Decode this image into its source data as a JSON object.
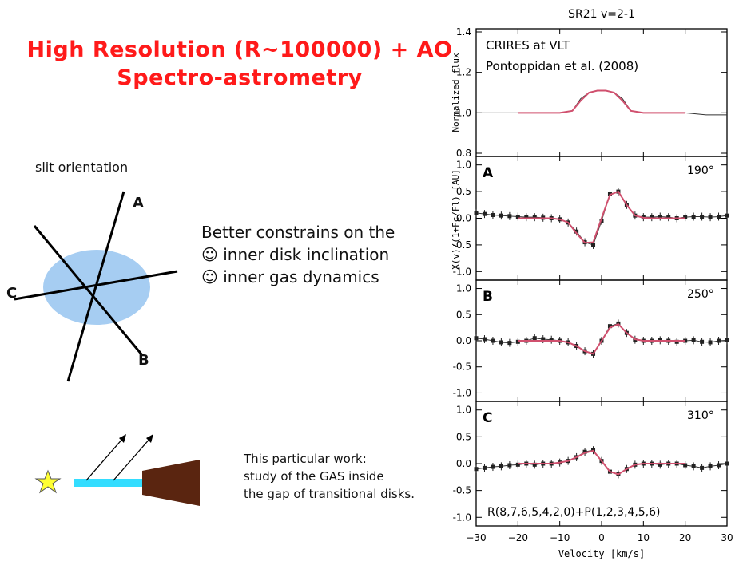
{
  "slide": {
    "title_line1": "High Resolution (R~100000) + AO",
    "title_line2": "Spectro-astrometry",
    "slit_orientation_label": "slit orientation",
    "slit_labels": {
      "a": "A",
      "b": "B",
      "c": "C"
    },
    "constraints": [
      "Better constrains on the",
      "☺ inner disk inclination",
      "☺ inner gas dynamics"
    ],
    "work_note": [
      "This particular work:",
      "study of the GAS inside",
      "the gap of transitional disks."
    ],
    "colors": {
      "title": "#ff1a1a",
      "disk": "#a6cdf2",
      "gas": "#33ddff",
      "outer_disk": "#5a2510",
      "star": "#ffff33",
      "model": "#d0506e"
    }
  },
  "chart_data": {
    "type": "line",
    "title": "SR21 v=2-1",
    "xlabel": "Velocity [km/s]",
    "xlim": [
      -30,
      30
    ],
    "xticks": [
      -30,
      -20,
      -10,
      0,
      10,
      20,
      30
    ],
    "annotation_top": [
      "CRIRES at VLT",
      "Pontoppidan et al. (2008)"
    ],
    "annotation_bottom": "R(8,7,6,5,4,2,0)+P(1,2,3,4,5,6)",
    "panels": [
      {
        "id": "flux",
        "ylabel": "Normalized flux",
        "ylim": [
          0.8,
          1.4
        ],
        "yticks": [
          "0.8",
          "1.0",
          "1.2",
          "1.4"
        ],
        "data": {
          "x": [
            -30,
            -25,
            -20,
            -15,
            -10,
            -7,
            -5,
            -3,
            -1,
            1,
            3,
            5,
            7,
            10,
            15,
            20,
            25,
            30
          ],
          "y": [
            1.0,
            1.0,
            1.0,
            1.0,
            1.0,
            1.01,
            1.07,
            1.1,
            1.11,
            1.11,
            1.1,
            1.07,
            1.01,
            1.0,
            1.0,
            1.0,
            0.99,
            0.99
          ]
        },
        "model": {
          "x": [
            -20,
            -15,
            -10,
            -7,
            -5,
            -3,
            -1,
            1,
            3,
            5,
            7,
            10,
            15,
            20
          ],
          "y": [
            1.0,
            1.0,
            1.0,
            1.01,
            1.06,
            1.1,
            1.11,
            1.11,
            1.1,
            1.06,
            1.01,
            1.0,
            1.0,
            1.0
          ]
        }
      },
      {
        "id": "A",
        "label": "A",
        "angle": "190°",
        "ylabel": "X(v)/(1+Fc/Fl) [AU]",
        "ylim": [
          -1.1,
          1.1
        ],
        "yticks": [
          "1.0",
          "0.5",
          "0.0",
          "-0.5",
          "-1.0"
        ],
        "data": {
          "x": [
            -30,
            -28,
            -26,
            -24,
            -22,
            -20,
            -18,
            -16,
            -14,
            -12,
            -10,
            -8,
            -6,
            -4,
            -2,
            0,
            2,
            4,
            6,
            8,
            10,
            12,
            14,
            16,
            18,
            20,
            22,
            24,
            26,
            28,
            30
          ],
          "y": [
            0.1,
            0.08,
            0.06,
            0.05,
            0.04,
            0.03,
            0.02,
            0.02,
            0.01,
            0.0,
            -0.02,
            -0.08,
            -0.25,
            -0.45,
            -0.5,
            -0.05,
            0.45,
            0.5,
            0.25,
            0.05,
            0.02,
            0.02,
            0.03,
            0.02,
            0.0,
            0.02,
            0.03,
            0.03,
            0.02,
            0.03,
            0.05
          ]
        },
        "model": {
          "x": [
            -20,
            -16,
            -12,
            -10,
            -8,
            -6,
            -4,
            -2,
            0,
            2,
            4,
            6,
            8,
            10,
            12,
            16,
            20
          ],
          "y": [
            0.0,
            0.0,
            0.0,
            -0.02,
            -0.08,
            -0.28,
            -0.46,
            -0.45,
            0.0,
            0.44,
            0.5,
            0.25,
            0.05,
            0.01,
            0.0,
            0.0,
            0.0
          ]
        }
      },
      {
        "id": "B",
        "label": "B",
        "angle": "250°",
        "ylim": [
          -1.1,
          1.1
        ],
        "yticks": [
          "1.0",
          "0.5",
          "0.0",
          "-0.5",
          "-1.0"
        ],
        "data": {
          "x": [
            -30,
            -28,
            -26,
            -24,
            -22,
            -20,
            -18,
            -16,
            -14,
            -12,
            -10,
            -8,
            -6,
            -4,
            -2,
            0,
            2,
            4,
            6,
            8,
            10,
            12,
            14,
            16,
            18,
            20,
            22,
            24,
            26,
            28,
            30
          ],
          "y": [
            0.05,
            0.03,
            0.0,
            -0.03,
            -0.04,
            -0.02,
            0.0,
            0.05,
            0.03,
            0.02,
            0.0,
            -0.03,
            -0.1,
            -0.2,
            -0.25,
            0.0,
            0.28,
            0.33,
            0.15,
            0.02,
            0.0,
            0.0,
            0.01,
            0.0,
            -0.02,
            0.0,
            0.01,
            -0.02,
            -0.03,
            0.0,
            0.01
          ]
        },
        "model": {
          "x": [
            -20,
            -16,
            -12,
            -10,
            -8,
            -6,
            -4,
            -2,
            0,
            2,
            4,
            6,
            8,
            10,
            12,
            16,
            20
          ],
          "y": [
            0.0,
            0.0,
            0.0,
            0.0,
            -0.03,
            -0.1,
            -0.2,
            -0.25,
            0.0,
            0.25,
            0.32,
            0.15,
            0.03,
            0.0,
            0.0,
            0.0,
            0.0
          ]
        }
      },
      {
        "id": "C",
        "label": "C",
        "angle": "310°",
        "ylim": [
          -1.1,
          1.1
        ],
        "yticks": [
          "1.0",
          "0.5",
          "0.0",
          "-0.5",
          "-1.0"
        ],
        "data": {
          "x": [
            -30,
            -28,
            -26,
            -24,
            -22,
            -20,
            -18,
            -16,
            -14,
            -12,
            -10,
            -8,
            -6,
            -4,
            -2,
            0,
            2,
            4,
            6,
            8,
            10,
            12,
            14,
            16,
            18,
            20,
            22,
            24,
            26,
            28,
            30
          ],
          "y": [
            -0.1,
            -0.08,
            -0.06,
            -0.05,
            -0.03,
            -0.02,
            0.0,
            -0.02,
            0.0,
            0.0,
            0.02,
            0.05,
            0.12,
            0.22,
            0.25,
            0.05,
            -0.15,
            -0.2,
            -0.1,
            -0.02,
            0.0,
            0.0,
            -0.02,
            0.0,
            0.0,
            -0.03,
            -0.05,
            -0.08,
            -0.05,
            -0.03,
            0.0
          ]
        },
        "model": {
          "x": [
            -20,
            -16,
            -12,
            -10,
            -8,
            -6,
            -4,
            -2,
            0,
            2,
            4,
            6,
            8,
            10,
            12,
            16,
            20
          ],
          "y": [
            0.0,
            0.0,
            0.0,
            0.02,
            0.05,
            0.12,
            0.2,
            0.24,
            0.05,
            -0.15,
            -0.2,
            -0.1,
            -0.02,
            0.0,
            0.0,
            0.0,
            0.0
          ]
        }
      }
    ]
  }
}
